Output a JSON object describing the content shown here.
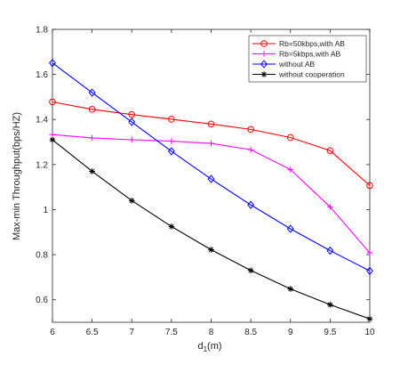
{
  "chart_data": {
    "type": "line",
    "title": "",
    "xlabel_main": "d",
    "xlabel_sub": "1",
    "xlabel_tail": "(m)",
    "ylabel": "Max-min Throughput(bps/HZ)",
    "xlim": [
      6,
      10
    ],
    "ylim": [
      0.5,
      1.8
    ],
    "x": [
      6,
      6.5,
      7,
      7.5,
      8,
      8.5,
      9,
      9.5,
      10
    ],
    "x_tick_labels": [
      "6",
      "6.5",
      "7",
      "7.5",
      "8",
      "8.5",
      "9",
      "9.5",
      "10"
    ],
    "y_ticks": [
      0.6,
      0.8,
      1.0,
      1.2,
      1.4,
      1.6,
      1.8
    ],
    "y_tick_labels": [
      "0.6",
      "0.8",
      "1",
      "1.2",
      "1.4",
      "1.6",
      "1.8"
    ],
    "grid": false,
    "legend_position": "top-right",
    "series": [
      {
        "name": "Rb=50kbps,with AB",
        "color": "#ff0000",
        "marker": "circle",
        "values": [
          1.478,
          1.445,
          1.422,
          1.401,
          1.38,
          1.356,
          1.32,
          1.262,
          1.107
        ]
      },
      {
        "name": "Rb=5kbps,with AB",
        "color": "#ff00ff",
        "marker": "plus",
        "values": [
          1.333,
          1.318,
          1.31,
          1.304,
          1.294,
          1.266,
          1.178,
          1.012,
          0.808
        ]
      },
      {
        "name": "without AB",
        "color": "#0000ff",
        "marker": "diamond",
        "values": [
          1.651,
          1.519,
          1.389,
          1.259,
          1.136,
          1.021,
          0.915,
          0.818,
          0.728
        ]
      },
      {
        "name": "without cooperation",
        "color": "#000000",
        "marker": "star",
        "values": [
          1.31,
          1.17,
          1.04,
          0.925,
          0.822,
          0.73,
          0.648,
          0.578,
          0.515
        ]
      }
    ]
  }
}
